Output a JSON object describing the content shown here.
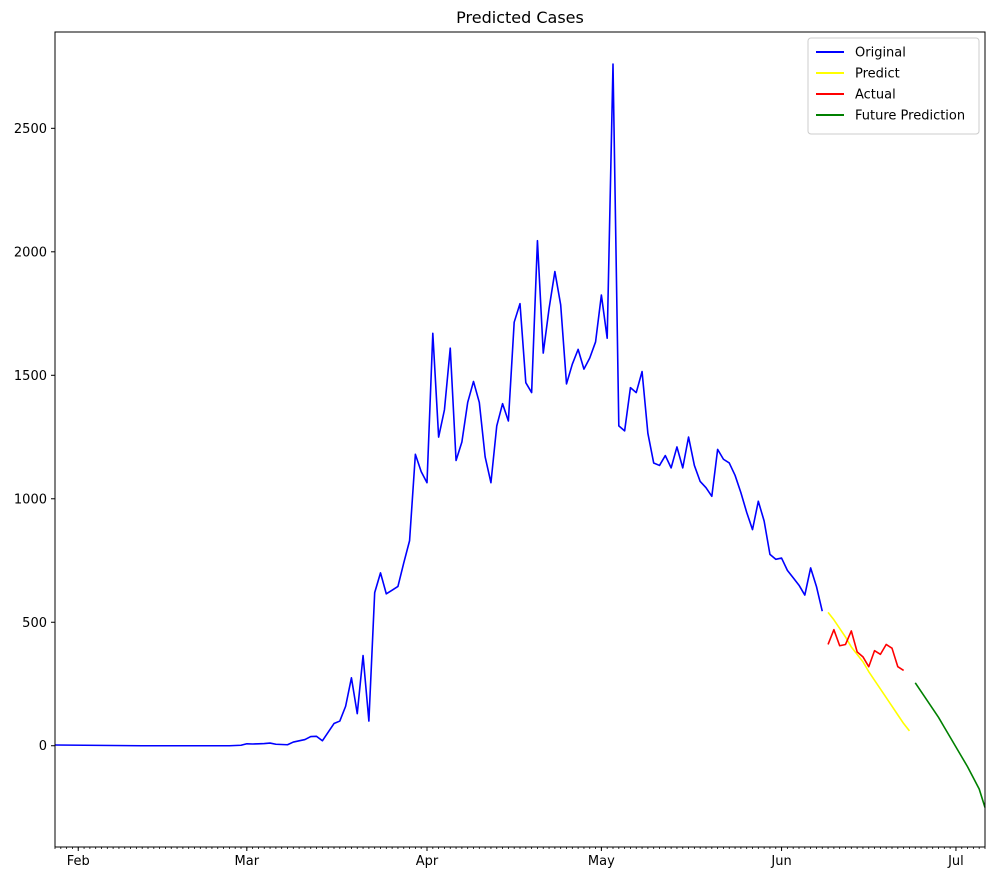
{
  "chart_data": {
    "type": "line",
    "title": "Predicted Cases",
    "xlabel": "",
    "ylabel": "",
    "x_axis": "date",
    "xlim": [
      "2020-01-28",
      "2020-07-06"
    ],
    "ylim": [
      -410,
      2890
    ],
    "y_ticks": [
      0,
      500,
      1000,
      1500,
      2000,
      2500
    ],
    "x_ticks": [
      {
        "date": "2020-02-01",
        "label": "Feb"
      },
      {
        "date": "2020-03-01",
        "label": "Mar"
      },
      {
        "date": "2020-04-01",
        "label": "Apr"
      },
      {
        "date": "2020-05-01",
        "label": "May"
      },
      {
        "date": "2020-06-01",
        "label": "Jun"
      },
      {
        "date": "2020-07-01",
        "label": "Jul"
      }
    ],
    "grid": false,
    "legend_position": "top-right",
    "series": [
      {
        "name": "Original",
        "color": "#0000ff",
        "points": [
          [
            "2020-01-28",
            3
          ],
          [
            "2020-02-02",
            2
          ],
          [
            "2020-02-07",
            1
          ],
          [
            "2020-02-12",
            0
          ],
          [
            "2020-02-13",
            0
          ],
          [
            "2020-02-17",
            0
          ],
          [
            "2020-02-22",
            0
          ],
          [
            "2020-02-27",
            0
          ],
          [
            "2020-02-28",
            1
          ],
          [
            "2020-02-29",
            2
          ],
          [
            "2020-03-01",
            8
          ],
          [
            "2020-03-02",
            7
          ],
          [
            "2020-03-03",
            8
          ],
          [
            "2020-03-04",
            9
          ],
          [
            "2020-03-05",
            11
          ],
          [
            "2020-03-06",
            6
          ],
          [
            "2020-03-07",
            5
          ],
          [
            "2020-03-08",
            4
          ],
          [
            "2020-03-09",
            15
          ],
          [
            "2020-03-10",
            20
          ],
          [
            "2020-03-11",
            25
          ],
          [
            "2020-03-12",
            37
          ],
          [
            "2020-03-13",
            38
          ],
          [
            "2020-03-14",
            20
          ],
          [
            "2020-03-15",
            55
          ],
          [
            "2020-03-16",
            90
          ],
          [
            "2020-03-17",
            100
          ],
          [
            "2020-03-18",
            160
          ],
          [
            "2020-03-19",
            275
          ],
          [
            "2020-03-20",
            130
          ],
          [
            "2020-03-21",
            365
          ],
          [
            "2020-03-22",
            100
          ],
          [
            "2020-03-23",
            620
          ],
          [
            "2020-03-24",
            700
          ],
          [
            "2020-03-25",
            615
          ],
          [
            "2020-03-26",
            630
          ],
          [
            "2020-03-27",
            645
          ],
          [
            "2020-03-28",
            740
          ],
          [
            "2020-03-29",
            830
          ],
          [
            "2020-03-30",
            1180
          ],
          [
            "2020-03-31",
            1110
          ],
          [
            "2020-04-01",
            1065
          ],
          [
            "2020-04-02",
            1670
          ],
          [
            "2020-04-03",
            1250
          ],
          [
            "2020-04-04",
            1360
          ],
          [
            "2020-04-05",
            1610
          ],
          [
            "2020-04-06",
            1155
          ],
          [
            "2020-04-07",
            1230
          ],
          [
            "2020-04-08",
            1390
          ],
          [
            "2020-04-09",
            1475
          ],
          [
            "2020-04-10",
            1390
          ],
          [
            "2020-04-11",
            1170
          ],
          [
            "2020-04-12",
            1065
          ],
          [
            "2020-04-13",
            1295
          ],
          [
            "2020-04-14",
            1385
          ],
          [
            "2020-04-15",
            1315
          ],
          [
            "2020-04-16",
            1715
          ],
          [
            "2020-04-17",
            1790
          ],
          [
            "2020-04-18",
            1470
          ],
          [
            "2020-04-19",
            1430
          ],
          [
            "2020-04-20",
            2045
          ],
          [
            "2020-04-21",
            1590
          ],
          [
            "2020-04-22",
            1770
          ],
          [
            "2020-04-23",
            1920
          ],
          [
            "2020-04-24",
            1785
          ],
          [
            "2020-04-25",
            1465
          ],
          [
            "2020-04-26",
            1545
          ],
          [
            "2020-04-27",
            1605
          ],
          [
            "2020-04-28",
            1525
          ],
          [
            "2020-04-29",
            1570
          ],
          [
            "2020-04-30",
            1635
          ],
          [
            "2020-05-01",
            1825
          ],
          [
            "2020-05-02",
            1650
          ],
          [
            "2020-05-03",
            2760
          ],
          [
            "2020-05-04",
            1295
          ],
          [
            "2020-05-05",
            1275
          ],
          [
            "2020-05-06",
            1450
          ],
          [
            "2020-05-07",
            1430
          ],
          [
            "2020-05-08",
            1515
          ],
          [
            "2020-05-09",
            1265
          ],
          [
            "2020-05-10",
            1145
          ],
          [
            "2020-05-11",
            1135
          ],
          [
            "2020-05-12",
            1175
          ],
          [
            "2020-05-13",
            1125
          ],
          [
            "2020-05-14",
            1210
          ],
          [
            "2020-05-15",
            1125
          ],
          [
            "2020-05-16",
            1250
          ],
          [
            "2020-05-17",
            1135
          ],
          [
            "2020-05-18",
            1070
          ],
          [
            "2020-05-19",
            1045
          ],
          [
            "2020-05-20",
            1010
          ],
          [
            "2020-05-21",
            1200
          ],
          [
            "2020-05-22",
            1160
          ],
          [
            "2020-05-23",
            1145
          ],
          [
            "2020-05-24",
            1095
          ],
          [
            "2020-05-25",
            1025
          ],
          [
            "2020-05-26",
            945
          ],
          [
            "2020-05-27",
            875
          ],
          [
            "2020-05-28",
            990
          ],
          [
            "2020-05-29",
            910
          ],
          [
            "2020-05-30",
            775
          ],
          [
            "2020-05-31",
            755
          ],
          [
            "2020-06-01",
            760
          ],
          [
            "2020-06-02",
            710
          ],
          [
            "2020-06-03",
            680
          ],
          [
            "2020-06-04",
            650
          ],
          [
            "2020-06-05",
            610
          ],
          [
            "2020-06-06",
            720
          ],
          [
            "2020-06-07",
            645
          ],
          [
            "2020-06-08",
            545
          ]
        ]
      },
      {
        "name": "Predict",
        "color": "#ffff00",
        "points": [
          [
            "2020-06-09",
            540
          ],
          [
            "2020-06-10",
            510
          ],
          [
            "2020-06-11",
            475
          ],
          [
            "2020-06-12",
            440
          ],
          [
            "2020-06-13",
            400
          ],
          [
            "2020-06-14",
            370
          ],
          [
            "2020-06-15",
            340
          ],
          [
            "2020-06-16",
            300
          ],
          [
            "2020-06-17",
            265
          ],
          [
            "2020-06-18",
            230
          ],
          [
            "2020-06-19",
            195
          ],
          [
            "2020-06-20",
            160
          ],
          [
            "2020-06-21",
            125
          ],
          [
            "2020-06-22",
            90
          ],
          [
            "2020-06-23",
            60
          ]
        ]
      },
      {
        "name": "Actual",
        "color": "#ff0000",
        "points": [
          [
            "2020-06-09",
            410
          ],
          [
            "2020-06-10",
            470
          ],
          [
            "2020-06-11",
            405
          ],
          [
            "2020-06-12",
            410
          ],
          [
            "2020-06-13",
            465
          ],
          [
            "2020-06-14",
            380
          ],
          [
            "2020-06-15",
            360
          ],
          [
            "2020-06-16",
            320
          ],
          [
            "2020-06-17",
            385
          ],
          [
            "2020-06-18",
            370
          ],
          [
            "2020-06-19",
            410
          ],
          [
            "2020-06-20",
            395
          ],
          [
            "2020-06-21",
            320
          ],
          [
            "2020-06-22",
            305
          ]
        ]
      },
      {
        "name": "Future Prediction",
        "color": "#008000",
        "points": [
          [
            "2020-06-24",
            255
          ],
          [
            "2020-06-25",
            220
          ],
          [
            "2020-06-26",
            185
          ],
          [
            "2020-06-27",
            150
          ],
          [
            "2020-06-28",
            115
          ],
          [
            "2020-06-29",
            75
          ],
          [
            "2020-06-30",
            35
          ],
          [
            "2020-07-01",
            -5
          ],
          [
            "2020-07-02",
            -45
          ],
          [
            "2020-07-03",
            -85
          ],
          [
            "2020-07-04",
            -130
          ],
          [
            "2020-07-05",
            -175
          ],
          [
            "2020-07-06",
            -250
          ]
        ]
      }
    ]
  }
}
